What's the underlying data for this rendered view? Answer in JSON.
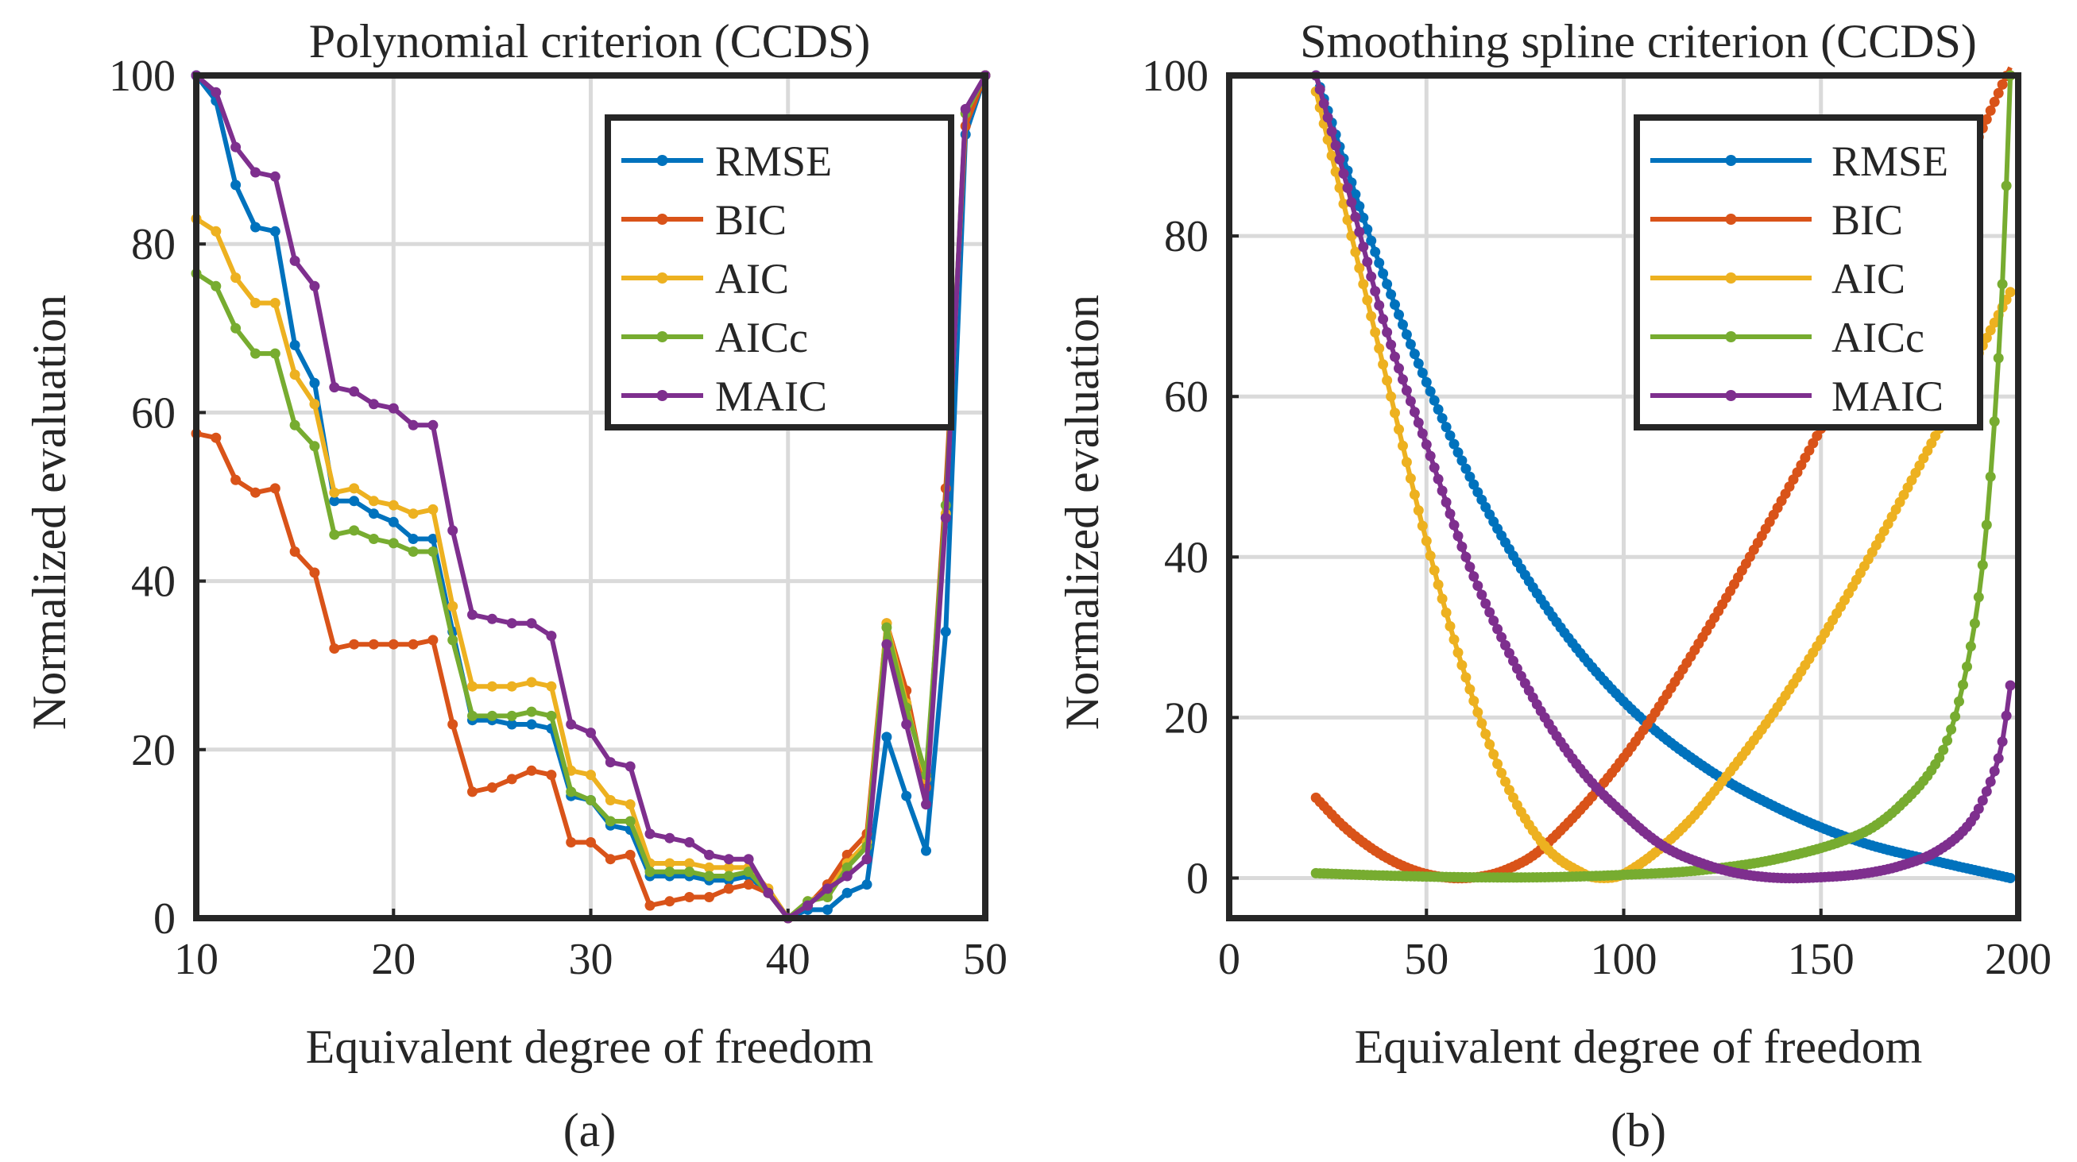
{
  "figure": {
    "captions": [
      "(a)",
      "(b)"
    ]
  },
  "chart_data": [
    {
      "type": "line",
      "title": "Polynomial criterion (CCDS)",
      "xlabel": "Equivalent degree of freedom",
      "ylabel": "Normalized evaluation",
      "xlim": [
        10,
        50
      ],
      "ylim": [
        0,
        100
      ],
      "xticks": [
        10,
        20,
        30,
        40,
        50
      ],
      "yticks": [
        0,
        20,
        40,
        60,
        80,
        100
      ],
      "grid": true,
      "legend_position": "top-right",
      "x": [
        10,
        11,
        12,
        13,
        14,
        15,
        16,
        17,
        18,
        19,
        20,
        21,
        22,
        23,
        24,
        25,
        26,
        27,
        28,
        29,
        30,
        31,
        32,
        33,
        34,
        35,
        36,
        37,
        38,
        39,
        40,
        41,
        42,
        43,
        44,
        45,
        46,
        47,
        48,
        49,
        50
      ],
      "series": [
        {
          "name": "RMSE",
          "color": "#0072BD",
          "values": [
            100,
            97,
            87,
            82,
            81.5,
            68,
            63.5,
            49.5,
            49.5,
            48,
            47,
            45,
            45,
            34,
            23.5,
            23.5,
            23,
            23,
            22.5,
            14.5,
            14,
            11,
            10.5,
            5,
            5,
            5,
            4.5,
            4.5,
            5,
            3,
            0,
            1,
            1,
            3,
            4,
            21.5,
            14.5,
            8,
            34,
            93,
            100
          ]
        },
        {
          "name": "BIC",
          "color": "#D95319",
          "values": [
            57.5,
            57,
            52,
            50.5,
            51,
            43.5,
            41,
            32,
            32.5,
            32.5,
            32.5,
            32.5,
            33,
            23,
            15,
            15.5,
            16.5,
            17.5,
            17,
            9,
            9,
            7,
            7.5,
            1.5,
            2,
            2.5,
            2.5,
            3.5,
            4,
            3,
            0,
            1.5,
            4,
            7.5,
            10,
            35,
            27,
            15.5,
            51,
            94,
            100
          ]
        },
        {
          "name": "AIC",
          "color": "#EDB120",
          "values": [
            83,
            81.5,
            76,
            73,
            73,
            64.5,
            61,
            50.5,
            51,
            49.5,
            49,
            48,
            48.5,
            37,
            27.5,
            27.5,
            27.5,
            28,
            27.5,
            17.5,
            17,
            14,
            13.5,
            6.5,
            6.5,
            6.5,
            6,
            6,
            6,
            3.5,
            0,
            2,
            3,
            6.5,
            9,
            35,
            25.5,
            16.5,
            48,
            95.5,
            100
          ]
        },
        {
          "name": "AICc",
          "color": "#77AC30",
          "values": [
            76.5,
            75,
            70,
            67,
            67,
            58.5,
            56,
            45.5,
            46,
            45,
            44.5,
            43.5,
            43.5,
            33,
            24,
            24,
            24,
            24.5,
            24,
            15,
            14,
            11.5,
            11.5,
            5.5,
            5.5,
            5.5,
            5,
            5,
            5.5,
            3,
            0,
            2,
            2.5,
            6,
            8.5,
            34.5,
            25,
            17,
            49,
            95.5,
            100
          ]
        },
        {
          "name": "MAIC",
          "color": "#7E2F8E",
          "values": [
            100,
            98,
            91.5,
            88.5,
            88,
            78,
            75,
            63,
            62.5,
            61,
            60.5,
            58.5,
            58.5,
            46,
            36,
            35.5,
            35,
            35,
            33.5,
            23,
            22,
            18.5,
            18,
            10,
            9.5,
            9,
            7.5,
            7,
            7,
            3,
            0,
            1.5,
            3.5,
            5,
            7,
            32.5,
            23,
            13.5,
            47.5,
            96,
            100
          ]
        }
      ]
    },
    {
      "type": "line",
      "title": "Smoothing spline criterion (CCDS)",
      "xlabel": "Equivalent degree of freedom",
      "ylabel": "Normalized evaluation",
      "xlim": [
        0,
        200
      ],
      "ylim": [
        -5,
        100
      ],
      "xticks": [
        0,
        50,
        100,
        150,
        200
      ],
      "yticks": [
        0,
        20,
        40,
        60,
        80,
        100
      ],
      "grid": true,
      "legend_position": "top-right",
      "x_range": [
        22,
        198
      ],
      "series": [
        {
          "name": "RMSE",
          "color": "#0072BD",
          "anchors": [
            [
              22,
              100
            ],
            [
              40,
              74
            ],
            [
              60,
              51
            ],
            [
              80,
              34
            ],
            [
              100,
              22
            ],
            [
              120,
              14
            ],
            [
              140,
              8.5
            ],
            [
              160,
              4.5
            ],
            [
              180,
              2
            ],
            [
              198,
              0
            ]
          ]
        },
        {
          "name": "BIC",
          "color": "#D95319",
          "anchors": [
            [
              22,
              10
            ],
            [
              30,
              6
            ],
            [
              40,
              2.5
            ],
            [
              50,
              0.5
            ],
            [
              60,
              0
            ],
            [
              70,
              1
            ],
            [
              80,
              4
            ],
            [
              100,
              15
            ],
            [
              120,
              30
            ],
            [
              140,
              47
            ],
            [
              160,
              65
            ],
            [
              180,
              82
            ],
            [
              198,
              101
            ]
          ]
        },
        {
          "name": "AIC",
          "color": "#EDB120",
          "anchors": [
            [
              22,
              98
            ],
            [
              30,
              82
            ],
            [
              40,
              62
            ],
            [
              50,
              42
            ],
            [
              60,
              25
            ],
            [
              70,
              12
            ],
            [
              80,
              4
            ],
            [
              90,
              0.5
            ],
            [
              95,
              0
            ],
            [
              100,
              0.5
            ],
            [
              110,
              4
            ],
            [
              120,
              9
            ],
            [
              140,
              22
            ],
            [
              160,
              38
            ],
            [
              180,
              56
            ],
            [
              198,
              73
            ]
          ]
        },
        {
          "name": "AICc",
          "color": "#77AC30",
          "anchors": [
            [
              22,
              0.6
            ],
            [
              40,
              0.3
            ],
            [
              60,
              0.1
            ],
            [
              80,
              0.1
            ],
            [
              100,
              0.4
            ],
            [
              120,
              1
            ],
            [
              140,
              2.5
            ],
            [
              160,
              5.5
            ],
            [
              170,
              9
            ],
            [
              180,
              15
            ],
            [
              185,
              22
            ],
            [
              190,
              35
            ],
            [
              193,
              50
            ],
            [
              196,
              74
            ],
            [
              198,
              100
            ]
          ]
        },
        {
          "name": "MAIC",
          "color": "#7E2F8E",
          "anchors": [
            [
              22,
              100
            ],
            [
              30,
              86
            ],
            [
              40,
              68
            ],
            [
              50,
              54
            ],
            [
              60,
              40
            ],
            [
              70,
              29
            ],
            [
              80,
              20
            ],
            [
              90,
              13
            ],
            [
              100,
              8
            ],
            [
              110,
              4
            ],
            [
              120,
              1.8
            ],
            [
              130,
              0.5
            ],
            [
              140,
              0
            ],
            [
              150,
              0.1
            ],
            [
              160,
              0.5
            ],
            [
              170,
              1.5
            ],
            [
              180,
              3.5
            ],
            [
              188,
              7
            ],
            [
              193,
              12
            ],
            [
              196,
              17
            ],
            [
              198,
              24
            ]
          ]
        }
      ]
    }
  ]
}
